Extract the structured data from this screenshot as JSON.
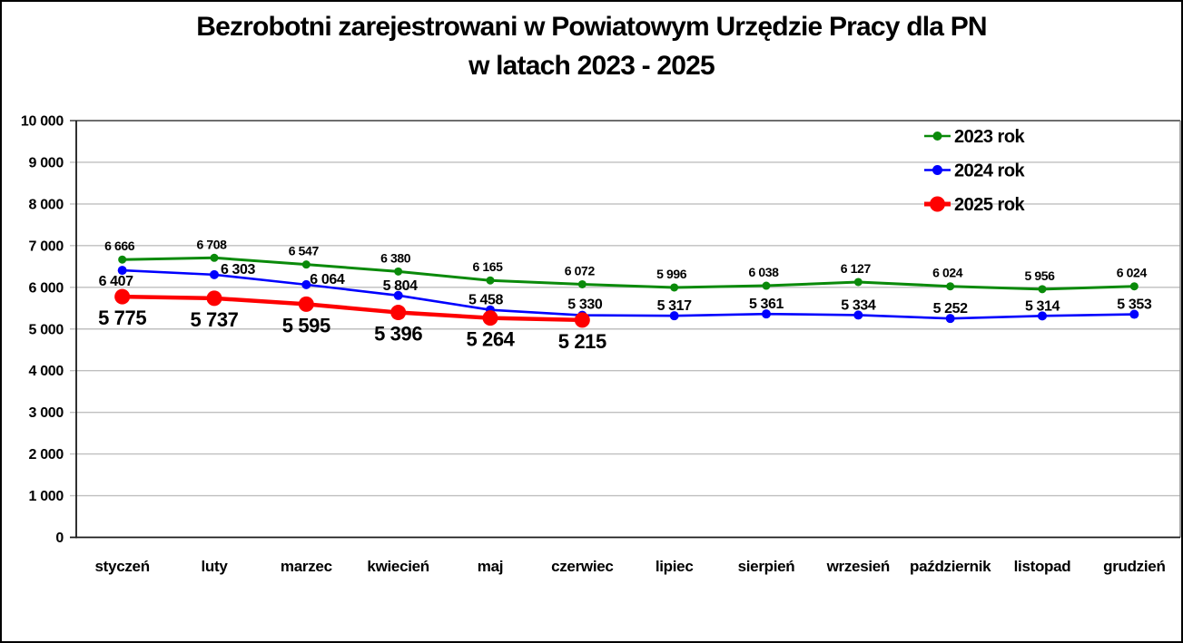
{
  "title": {
    "line1": "Bezrobotni zarejestrowani w Powiatowym Urzędzie Pracy dla PN",
    "line2": "w latach 2023 - 2025"
  },
  "chart_data": {
    "type": "line",
    "title": "Bezrobotni zarejestrowani w Powiatowym Urzędzie Pracy dla PN w latach 2023 - 2025",
    "categories": [
      "styczeń",
      "luty",
      "marzec",
      "kwiecień",
      "maj",
      "czerwiec",
      "lipiec",
      "sierpień",
      "wrzesień",
      "październik",
      "listopad",
      "grudzień"
    ],
    "series": [
      {
        "name": "2023 rok",
        "color": "#0a8a0a",
        "values": [
          6666,
          6708,
          6547,
          6380,
          6165,
          6072,
          5996,
          6038,
          6127,
          6024,
          5956,
          6024
        ]
      },
      {
        "name": "2024 rok",
        "color": "#0000fe",
        "values": [
          6407,
          6303,
          6064,
          5804,
          5458,
          5330,
          5317,
          5361,
          5334,
          5252,
          5314,
          5353
        ]
      },
      {
        "name": "2025 rok",
        "color": "#fe0000",
        "values": [
          5775,
          5737,
          5595,
          5396,
          5264,
          5215
        ]
      }
    ],
    "xlabel": "",
    "ylabel": "",
    "ylim": [
      0,
      10000
    ],
    "ytick_step": 1000,
    "grid": "horizontal",
    "legend_position": "top-right-inside",
    "number_format": "space-thousands",
    "data_labels": true
  },
  "colors": {
    "gridline": "#bfbfbf",
    "plot_border_top": "#6e6e6e",
    "plot_border_right": "#8c8c8c",
    "axis": "#1a1a1a",
    "background": "#ffffff",
    "text": "#000000"
  }
}
